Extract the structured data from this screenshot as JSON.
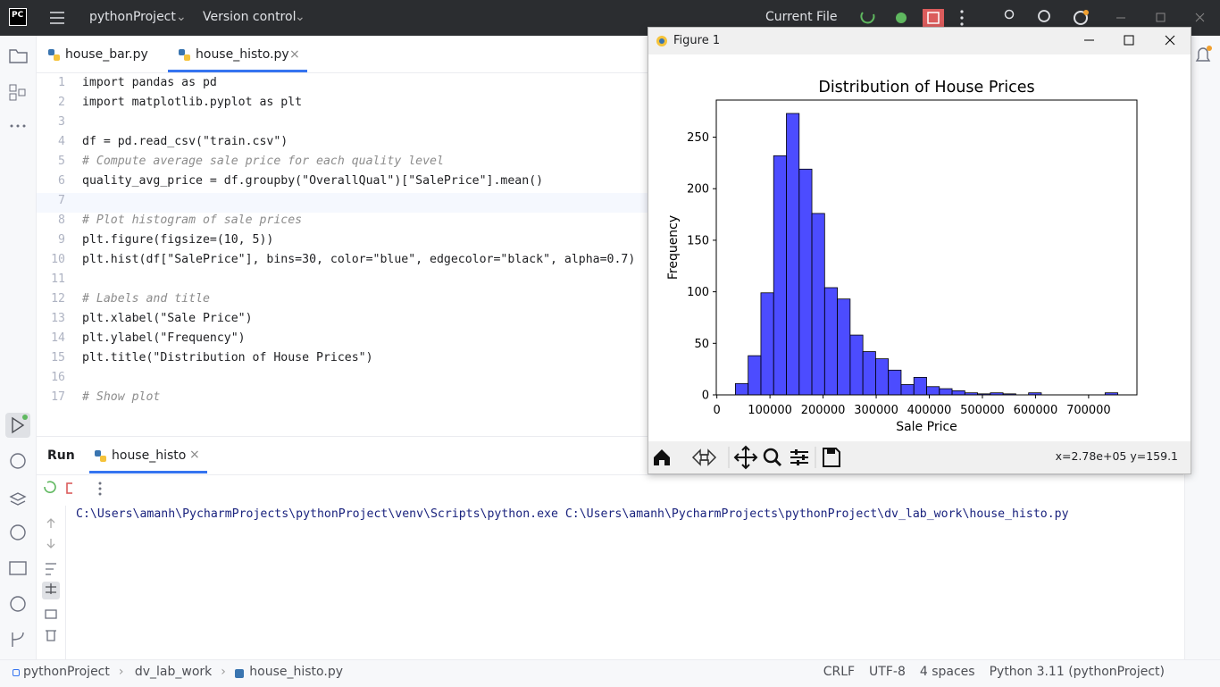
{
  "toolbar": {
    "logo": "PC",
    "project": "pythonProject",
    "vcs": "Version control",
    "run_config": "Current File"
  },
  "editor": {
    "tabs": [
      "house_bar.py",
      "house_histo.py"
    ],
    "lines": [
      {
        "number": 1,
        "text": "import pandas as pd"
      },
      {
        "number": 2,
        "text": "import matplotlib.pyplot as plt"
      },
      {
        "number": 3
      },
      {
        "number": 4,
        "text": "df = pd.read_csv(\"train.csv\")"
      },
      {
        "number": 5,
        "text": "# Compute average sale price for each quality level"
      },
      {
        "number": 6,
        "text": "quality_avg_price = df.groupby(\"OverallQual\")[\"SalePrice\"].mean()"
      },
      {
        "number": 7
      },
      {
        "number": 8,
        "text": "# Plot histogram of sale prices"
      },
      {
        "number": 9,
        "text": "plt.figure(figsize=(10, 5))"
      },
      {
        "number": 10,
        "text": "plt.hist(df[\"SalePrice\"], bins=30, color=\"blue\", edgecolor=\"black\", alpha=0.7)"
      },
      {
        "number": 11
      },
      {
        "number": 12,
        "text": "# Labels and title"
      },
      {
        "number": 13,
        "text": "plt.xlabel(\"Sale Price\")"
      },
      {
        "number": 14,
        "text": "plt.ylabel(\"Frequency\")"
      },
      {
        "number": 15,
        "text": "plt.title(\"Distribution of House Prices\")"
      },
      {
        "number": 16
      },
      {
        "number": 17,
        "text": "# Show plot"
      }
    ]
  },
  "run_panel": {
    "title": "Run",
    "tab": "house_histo",
    "output": "C:\\Users\\amanh\\PycharmProjects\\pythonProject\\venv\\Scripts\\python.exe C:\\Users\\amanh\\PycharmProjects\\pythonProject\\dv_lab_work\\house_histo.py"
  },
  "figure": {
    "window_title": "Figure 1",
    "coordinates": "x=2.78e+05 y=159.1"
  },
  "chart_data": {
    "type": "histogram",
    "title": "Distribution of House Prices",
    "x_label": "Sale Price",
    "y_label": "Frequency",
    "bins": [
      34900,
      58903,
      82907,
      106910,
      130913,
      154917,
      178920,
      202923,
      226927,
      250930,
      274933,
      298937,
      322940,
      346943,
      370947,
      394950,
      418953,
      442957,
      466960,
      490963,
      514967,
      538970,
      562973,
      586977,
      610980,
      634983,
      658987,
      682990,
      706993,
      730997,
      755000
    ],
    "values": [
      11,
      38,
      99,
      232,
      273,
      219,
      176,
      104,
      93,
      58,
      42,
      35,
      24,
      10,
      17,
      8,
      6,
      4,
      2,
      1,
      2,
      1,
      0,
      2,
      0,
      0,
      0,
      0,
      0,
      2
    ],
    "color": "blue",
    "edgecolor": "black",
    "alpha": 0.7,
    "xlim": [
      -1105,
      791005
    ],
    "xticks": [
      0,
      100000,
      200000,
      300000,
      400000,
      500000,
      600000,
      700000
    ],
    "ylim": [
      0,
      286
    ],
    "yticks": [
      0,
      50,
      100,
      150,
      200,
      250
    ],
    "grid": false
  },
  "status_bar": {
    "breadcrumbs": [
      "pythonProject",
      "dv_lab_work",
      "house_histo.py"
    ],
    "items": [
      "CRLF",
      "UTF-8",
      "4 spaces",
      "Python 3.11 (pythonProject)"
    ]
  }
}
